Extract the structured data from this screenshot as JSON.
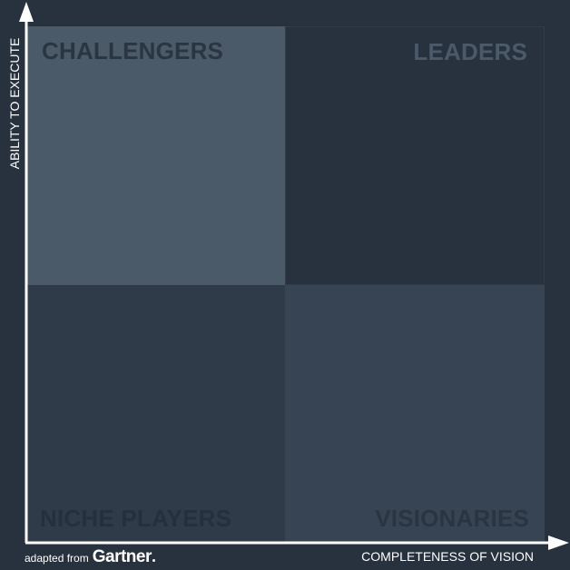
{
  "quadrants": {
    "challengers": "CHALLENGERS",
    "leaders": "LEADERS",
    "niche_players": "NICHE PLAYERS",
    "visionaries": "VISIONARIES"
  },
  "axes": {
    "y_label": "ABILITY TO EXECUTE",
    "x_label": "COMPLETENESS OF VISION"
  },
  "credit": {
    "prefix": "adapted from",
    "brand": "Gartner"
  },
  "colors": {
    "background": "#28313e",
    "challengers": "#4a5a68",
    "niche_players": "#303b4a",
    "visionaries": "#374454",
    "axis": "#ffffff"
  }
}
